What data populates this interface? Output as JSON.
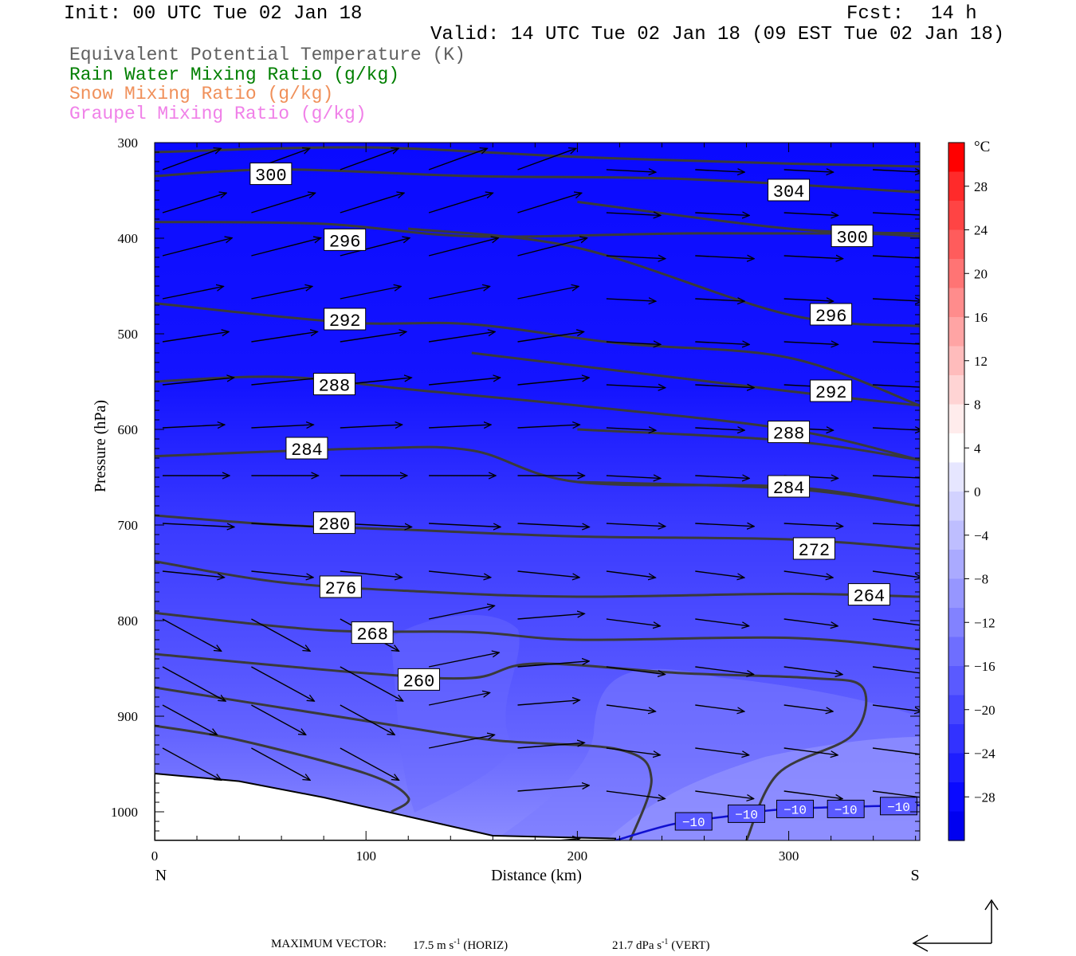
{
  "header": {
    "init": "Init: 00 UTC Tue 02 Jan 18",
    "fcst_label": "Fcst:",
    "fcst_value": "14 h",
    "valid": "Valid: 14 UTC Tue 02 Jan 18 (09 EST Tue 02 Jan 18)"
  },
  "legend": [
    {
      "label": "Equivalent Potential Temperature (K)",
      "color": "#606060"
    },
    {
      "label": "Rain Water Mixing Ratio (g/kg)",
      "color": "#007f00"
    },
    {
      "label": "Snow Mixing Ratio (g/kg)",
      "color": "#f0905a"
    },
    {
      "label": "Graupel Mixing Ratio (g/kg)",
      "color": "#f080e8"
    }
  ],
  "chart_data": {
    "type": "heatmap",
    "xlabel": "Distance (km)",
    "ylabel": "Pressure (hPa)",
    "xlim": [
      0,
      362
    ],
    "ylim": [
      1030,
      300
    ],
    "x_ticks": [
      0,
      100,
      200,
      300
    ],
    "y_ticks": [
      300,
      400,
      500,
      600,
      700,
      800,
      900,
      1000
    ],
    "x_end_labels": {
      "left": "N",
      "right": "S"
    },
    "colorbar": {
      "unit": "°C",
      "tick_labels": [
        "28",
        "24",
        "20",
        "16",
        "12",
        "8",
        "4",
        "0",
        "−4",
        "−8",
        "−12",
        "−16",
        "−20",
        "−24",
        "−28"
      ],
      "colors": [
        "#ff0000",
        "#ff2a2a",
        "#ff4444",
        "#ff5c5c",
        "#ff7474",
        "#ff8c8c",
        "#ffa4a4",
        "#ffbcbc",
        "#ffd4d4",
        "#ffecec",
        "#ffffff",
        "#e6e6ff",
        "#d2d2ff",
        "#bebeff",
        "#aaaaff",
        "#9696ff",
        "#8282ff",
        "#6e6eff",
        "#5a5aff",
        "#4646ff",
        "#3232ff",
        "#1e1eff",
        "#0a0aff",
        "#0000f0"
      ]
    },
    "theta_e_contours": [
      {
        "label": "300",
        "points": [
          [
            0,
            335
          ],
          [
            60,
            328
          ],
          [
            150,
            335
          ],
          [
            250,
            338
          ],
          [
            362,
            352
          ]
        ]
      },
      {
        "label": "304",
        "points": [
          [
            0,
            310
          ],
          [
            100,
            305
          ],
          [
            200,
            315
          ],
          [
            300,
            322
          ],
          [
            362,
            325
          ]
        ]
      },
      {
        "label": "296",
        "points": [
          [
            0,
            383
          ],
          [
            80,
            385
          ],
          [
            150,
            398
          ],
          [
            250,
            395
          ],
          [
            330,
            395
          ],
          [
            362,
            398
          ]
        ]
      },
      {
        "label": "300",
        "points": [
          [
            200,
            362
          ],
          [
            300,
            390
          ],
          [
            362,
            395
          ]
        ]
      },
      {
        "label": "292",
        "points": [
          [
            0,
            468
          ],
          [
            90,
            488
          ],
          [
            150,
            490
          ],
          [
            220,
            510
          ],
          [
            300,
            525
          ],
          [
            362,
            575
          ]
        ]
      },
      {
        "label": "296",
        "points": [
          [
            120,
            390
          ],
          [
            200,
            410
          ],
          [
            300,
            480
          ],
          [
            362,
            492
          ]
        ]
      },
      {
        "label": "288",
        "points": [
          [
            0,
            550
          ],
          [
            60,
            545
          ],
          [
            120,
            558
          ],
          [
            200,
            575
          ],
          [
            300,
            600
          ],
          [
            362,
            632
          ]
        ]
      },
      {
        "label": "292",
        "points": [
          [
            150,
            520
          ],
          [
            300,
            560
          ],
          [
            362,
            575
          ]
        ]
      },
      {
        "label": "284",
        "points": [
          [
            0,
            628
          ],
          [
            100,
            620
          ],
          [
            150,
            622
          ],
          [
            200,
            655
          ],
          [
            300,
            660
          ],
          [
            362,
            680
          ]
        ]
      },
      {
        "label": "288",
        "points": [
          [
            200,
            600
          ],
          [
            300,
            612
          ],
          [
            362,
            632
          ]
        ]
      },
      {
        "label": "280",
        "points": [
          [
            0,
            690
          ],
          [
            60,
            700
          ],
          [
            120,
            705
          ],
          [
            200,
            712
          ],
          [
            300,
            715
          ],
          [
            362,
            725
          ]
        ]
      },
      {
        "label": "284",
        "points": [
          [
            200,
            655
          ],
          [
            300,
            662
          ],
          [
            362,
            680
          ]
        ]
      },
      {
        "label": "276",
        "points": [
          [
            0,
            738
          ],
          [
            60,
            760
          ],
          [
            130,
            770
          ],
          [
            200,
            775
          ],
          [
            300,
            772
          ],
          [
            362,
            775
          ]
        ]
      },
      {
        "label": "272",
        "points": [
          [
            0,
            792
          ],
          [
            80,
            810
          ],
          [
            150,
            812
          ],
          [
            200,
            820
          ],
          [
            300,
            818
          ],
          [
            362,
            830
          ]
        ]
      },
      {
        "label": "268",
        "points": [
          [
            0,
            835
          ],
          [
            100,
            855
          ],
          [
            150,
            860
          ],
          [
            180,
            845
          ],
          [
            250,
            855
          ],
          [
            310,
            860
          ],
          [
            335,
            870
          ],
          [
            330,
            920
          ],
          [
            295,
            960
          ],
          [
            280,
            1030
          ]
        ]
      },
      {
        "label": "264",
        "points": [
          [
            0,
            870
          ],
          [
            100,
            905
          ],
          [
            160,
            925
          ],
          [
            220,
            935
          ],
          [
            235,
            965
          ],
          [
            225,
            1030
          ]
        ]
      },
      {
        "label": "260",
        "points": [
          [
            0,
            910
          ],
          [
            40,
            925
          ],
          [
            100,
            960
          ],
          [
            120,
            985
          ],
          [
            112,
            1000
          ]
        ]
      }
    ],
    "isotherm_minus10": {
      "label": "−10",
      "points": [
        [
          218,
          1030
        ],
        [
          245,
          1013
        ],
        [
          270,
          1005
        ],
        [
          300,
          997
        ],
        [
          362,
          993
        ]
      ]
    },
    "terrain_pressure_hpa": [
      [
        0,
        960
      ],
      [
        40,
        968
      ],
      [
        80,
        985
      ],
      [
        120,
        1005
      ],
      [
        160,
        1025
      ],
      [
        218,
        1028
      ]
    ],
    "wind_vectors_note": "circulation vectors shown across section",
    "max_vector": {
      "label": "MAXIMUM VECTOR:",
      "horiz_value": "17.5 m s",
      "horiz_exp": "-1",
      "horiz_tag": "(HORIZ)",
      "vert_value": "21.7 dPa s",
      "vert_exp": "-1",
      "vert_tag": "(VERT)"
    }
  }
}
